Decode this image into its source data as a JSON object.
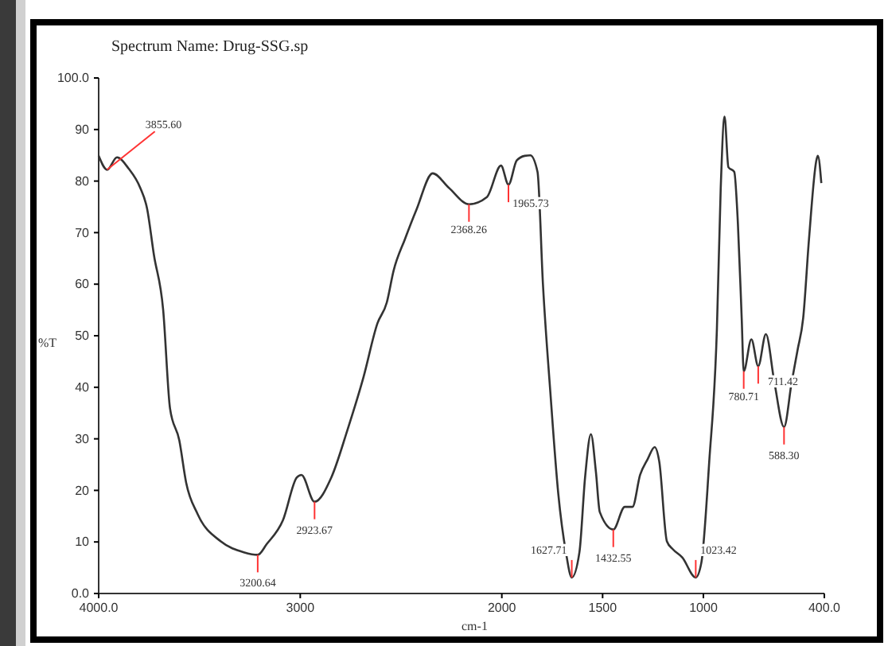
{
  "chart_data": {
    "type": "line",
    "title": "Spectrum Name: Drug-SSG.sp",
    "xlabel": "cm-1",
    "ylabel": "%T",
    "xlim": [
      4000,
      400
    ],
    "ylim": [
      0,
      100
    ],
    "xticks": [
      {
        "value": 4000,
        "label": "4000.0"
      },
      3000,
      2000,
      1500,
      1000,
      {
        "value": 400,
        "label": "400.0"
      }
    ],
    "yticks": [
      {
        "value": 0,
        "label": "0.0"
      },
      10,
      20,
      30,
      40,
      50,
      60,
      70,
      80,
      90,
      {
        "value": 100,
        "label": "100.0"
      }
    ],
    "grid": false,
    "marker": "none",
    "line_style": "solid",
    "series": [
      {
        "color": "#333333",
        "x": [
          4000,
          3958,
          3909,
          3851,
          3794,
          3760,
          3726,
          3680,
          3646,
          3600,
          3566,
          3509,
          3394,
          3280,
          3211,
          3166,
          3086,
          3017,
          2994,
          2929,
          2846,
          2766,
          2686,
          2617,
          2571,
          2537,
          2480,
          2423,
          2343,
          2263,
          2163,
          2074,
          2004,
          1967,
          1926,
          1886,
          1859,
          1823,
          1796,
          1759,
          1720,
          1682,
          1653,
          1615,
          1587,
          1558,
          1533,
          1514,
          1447,
          1390,
          1352,
          1314,
          1276,
          1242,
          1219,
          1181,
          1152,
          1105,
          1038,
          1010,
          971,
          933,
          914,
          895,
          876,
          847,
          829,
          810,
          800,
          762,
          728,
          690,
          648,
          600,
          562,
          533,
          505,
          476,
          438,
          432,
          415
        ],
        "values": [
          84.9,
          82.2,
          84.6,
          82.4,
          78.7,
          74.7,
          65.7,
          55,
          35.9,
          29.7,
          21.5,
          15.4,
          10.1,
          8.0,
          7.5,
          9.6,
          14.2,
          22.5,
          23.0,
          17.8,
          22.5,
          31.7,
          42.0,
          52.4,
          56.4,
          62.6,
          68.8,
          74.5,
          81.5,
          78.7,
          75.5,
          76.9,
          83.0,
          79.3,
          84.0,
          84.9,
          85.0,
          81.8,
          60,
          38.9,
          19.4,
          8.0,
          3.1,
          8.0,
          22.5,
          30.9,
          23.5,
          15.8,
          12.4,
          16.8,
          16.8,
          23.0,
          26.1,
          28.4,
          25.6,
          10.1,
          8.6,
          7.0,
          3.1,
          6.0,
          25.6,
          51.3,
          78.7,
          92.5,
          82.7,
          81.8,
          71.9,
          53.4,
          43.1,
          49.3,
          44.1,
          50.3,
          41.0,
          32.3,
          41.0,
          47.2,
          53.4,
          68.8,
          84.3,
          84.9,
          79.6
        ]
      }
    ],
    "annotations": [
      {
        "text": "3855.60",
        "x": 3958,
        "y": 82.2
      },
      {
        "text": "3200.64",
        "x": 3211,
        "y": 7.5
      },
      {
        "text": "2923.67",
        "x": 2929,
        "y": 17.8
      },
      {
        "text": "2368.26",
        "x": 2163,
        "y": 75.5
      },
      {
        "text": "1965.73",
        "x": 1967,
        "y": 79.3
      },
      {
        "text": "1627.71",
        "x": 1653,
        "y": 3.1
      },
      {
        "text": "1432.55",
        "x": 1447,
        "y": 12.4
      },
      {
        "text": "1023.42",
        "x": 1038,
        "y": 3.1
      },
      {
        "text": "780.71",
        "x": 800,
        "y": 43.1
      },
      {
        "text": "711.42",
        "x": 728,
        "y": 44.1
      },
      {
        "text": "588.30",
        "x": 600,
        "y": 32.3
      }
    ]
  }
}
